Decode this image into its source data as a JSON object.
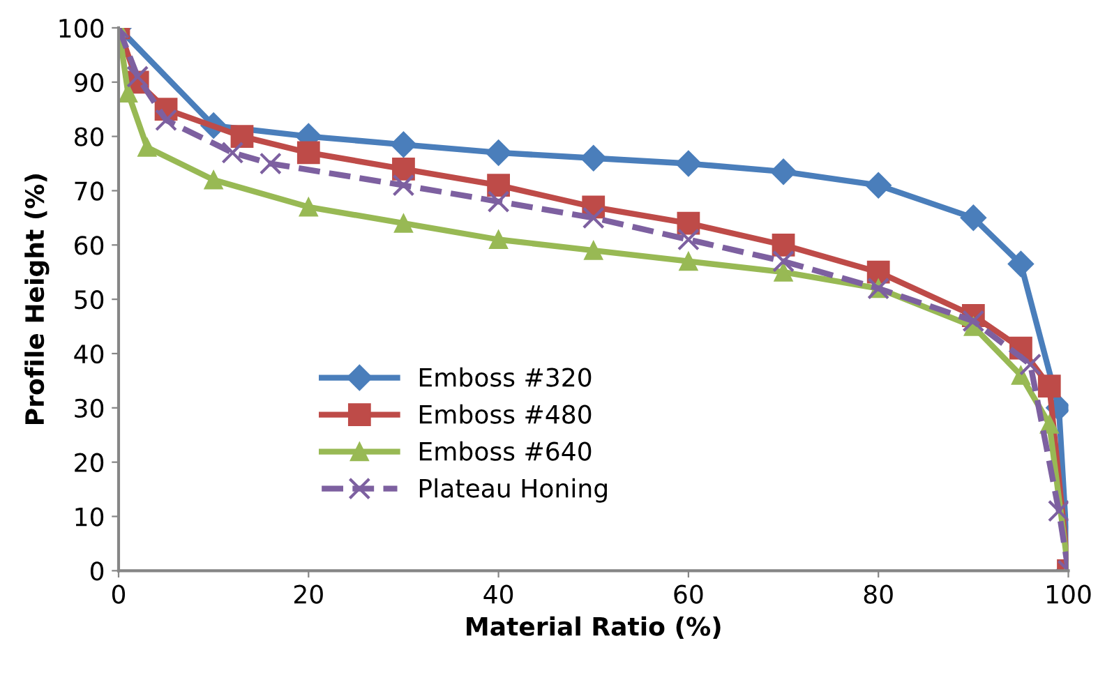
{
  "chart_data": {
    "type": "line",
    "xlabel": "Material Ratio (%)",
    "ylabel": "Profile Height (%)",
    "xlim": [
      0,
      100
    ],
    "xticks": [
      0,
      20,
      40,
      60,
      80,
      100
    ],
    "ylim": [
      0,
      100
    ],
    "yticks": [
      0,
      10,
      20,
      30,
      40,
      50,
      60,
      70,
      80,
      90,
      100
    ],
    "grid": false,
    "legend": "left",
    "series": [
      {
        "name": "Emboss #320",
        "color": "#4a7ebb",
        "marker": "diamond",
        "line_style": "solid",
        "x": [
          0,
          10,
          20,
          30,
          40,
          50,
          60,
          70,
          80,
          90,
          95,
          99,
          100
        ],
        "values": [
          100,
          82,
          80,
          78.5,
          77,
          76,
          75,
          73.5,
          71,
          65,
          56.5,
          30,
          0
        ]
      },
      {
        "name": "Emboss #480",
        "color": "#be4b48",
        "marker": "square",
        "line_style": "solid",
        "x": [
          0,
          2,
          5,
          13,
          20,
          30,
          40,
          50,
          60,
          70,
          80,
          90,
          95,
          98,
          100
        ],
        "values": [
          100,
          90,
          85,
          80,
          77,
          74,
          71,
          67,
          64,
          60,
          55,
          47,
          41,
          34,
          0
        ]
      },
      {
        "name": "Emboss #640",
        "color": "#98b954",
        "marker": "triangle",
        "line_style": "solid",
        "x": [
          0,
          1,
          3,
          10,
          20,
          30,
          40,
          50,
          60,
          70,
          80,
          90,
          95,
          98,
          100
        ],
        "values": [
          100,
          88,
          78,
          72,
          67,
          64,
          61,
          59,
          57,
          55,
          52,
          45,
          36,
          27,
          0
        ]
      },
      {
        "name": "Plateau Honing",
        "color": "#7d60a0",
        "marker": "cross",
        "line_style": "dashed",
        "x": [
          0,
          2,
          5,
          12,
          16,
          30,
          40,
          50,
          60,
          70,
          80,
          90,
          96,
          99,
          100
        ],
        "values": [
          100,
          91,
          83,
          77,
          75,
          71,
          68,
          65,
          61,
          57,
          52,
          46,
          38,
          11,
          0
        ]
      }
    ]
  }
}
